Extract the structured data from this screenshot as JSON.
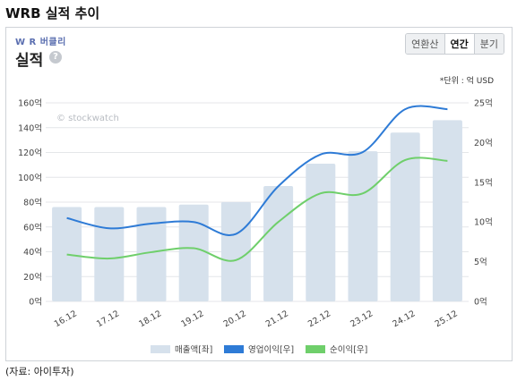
{
  "page_title": "WRB 실적 추이",
  "card": {
    "brand": "W R 버클리",
    "section_title": "실적",
    "help_icon": "question-icon",
    "tabs": [
      {
        "label": "연환산",
        "active": false
      },
      {
        "label": "연간",
        "active": true
      },
      {
        "label": "분기",
        "active": false
      }
    ],
    "unit_note": "*단위 : 억 USD",
    "watermark": "© stockwatch"
  },
  "source": "(자료: 아이투자)",
  "colors": {
    "bar": "#d6e1ec",
    "operating": "#2e7bd6",
    "net": "#6fcf6b",
    "grid": "#e4e6e9"
  },
  "chart_data": {
    "type": "bar",
    "categories": [
      "16.12",
      "17.12",
      "18.12",
      "19.12",
      "20.12",
      "21.12",
      "22.12",
      "23.12",
      "24.12",
      "25.12"
    ],
    "left_ticks": [
      "0억",
      "20억",
      "40억",
      "60억",
      "80억",
      "100억",
      "120억",
      "140억",
      "160억"
    ],
    "right_ticks": [
      "0억",
      "5억",
      "10억",
      "15억",
      "20억",
      "25억"
    ],
    "ylim_left": [
      0,
      160
    ],
    "ylim_right": [
      0,
      25
    ],
    "series": [
      {
        "name": "매출액[좌]",
        "type": "bar",
        "axis": "left",
        "values": [
          76,
          76,
          76,
          78,
          80,
          93,
          111,
          121,
          136,
          146
        ]
      },
      {
        "name": "영업이익[우]",
        "type": "line",
        "axis": "right",
        "values": [
          10.5,
          9.2,
          9.8,
          10.0,
          8.5,
          14.5,
          18.5,
          18.8,
          24.2,
          24.2
        ]
      },
      {
        "name": "순이익[우]",
        "type": "line",
        "axis": "right",
        "values": [
          5.9,
          5.4,
          6.2,
          6.7,
          5.2,
          10.0,
          13.6,
          13.6,
          17.8,
          17.7
        ]
      }
    ],
    "legend_position": "bottom",
    "grid": true
  }
}
